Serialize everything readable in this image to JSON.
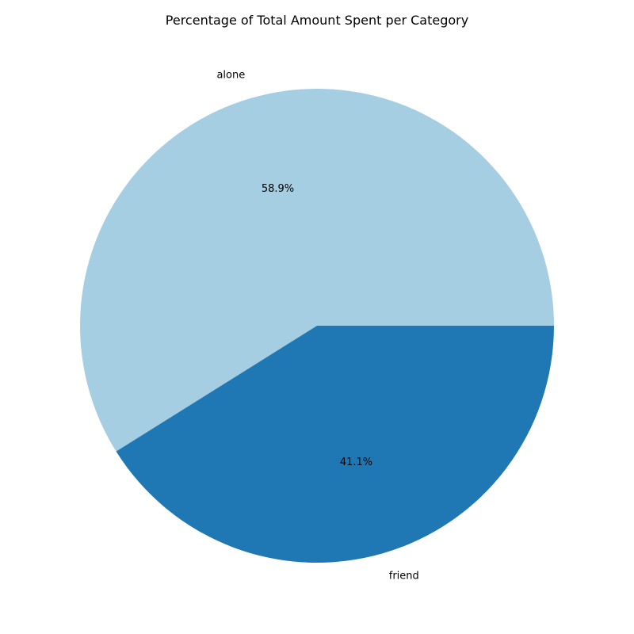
{
  "chart_data": {
    "type": "pie",
    "title": "Percentage of Total Amount Spent per Category",
    "categories": [
      "alone",
      "friend"
    ],
    "values": [
      58.9,
      41.1
    ],
    "value_labels": [
      "58.9%",
      "41.1%"
    ],
    "colors": [
      "#a6cee3",
      "#1f78b4"
    ],
    "start_angle_deg": 0,
    "direction": "counterclockwise",
    "legend": "none"
  }
}
